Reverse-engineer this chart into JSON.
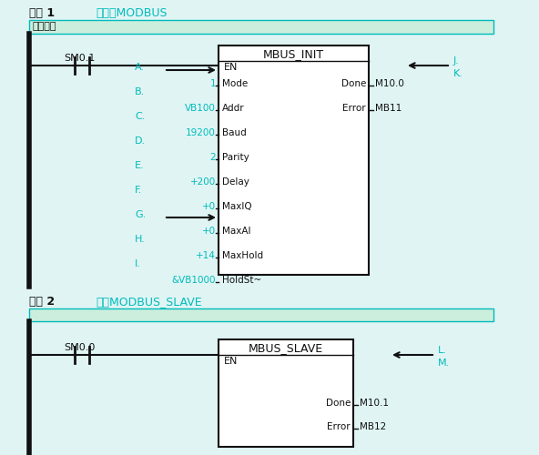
{
  "bg_color": "#e0f4f4",
  "white_bg": "#ffffff",
  "cyan_color": "#00bbbb",
  "black_color": "#111111",
  "dark_color": "#222222",
  "net1_label": "网络 1",
  "net1_title": "初始化MODBUS",
  "net1_note": "网络注释",
  "net2_label": "网络 2",
  "net2_title": "调用MODBUS_SLAVE",
  "contact1_label": "SM0.1",
  "func1_name": "MBUS_INIT",
  "func1_en": "EN",
  "func1_inputs": [
    "1",
    "VB100",
    "19200",
    "2",
    "+200",
    "+0",
    "+0",
    "+14",
    "&VB1000"
  ],
  "func1_input_labels": [
    "Mode",
    "Addr",
    "Baud",
    "Parity",
    "Delay",
    "MaxIQ",
    "MaxAI",
    "MaxHold",
    "HoldSt~"
  ],
  "func1_outputs": [
    "Done",
    "Error"
  ],
  "func1_output_vals": [
    "M10.0",
    "MB11"
  ],
  "letters_left": [
    "A.",
    "B.",
    "C.",
    "D.",
    "E.",
    "F.",
    "G.",
    "H.",
    "I."
  ],
  "arrow1_letter": "A.",
  "arrow2_letter": "H.",
  "letter_J": "J.",
  "letter_K": "K.",
  "contact2_label": "SM0.0",
  "func2_name": "MBUS_SLAVE",
  "func2_en": "EN",
  "func2_outputs": [
    "Done",
    "Error"
  ],
  "func2_output_vals": [
    "M10.1",
    "MB12"
  ],
  "letter_L": "L.",
  "letter_M": "M."
}
